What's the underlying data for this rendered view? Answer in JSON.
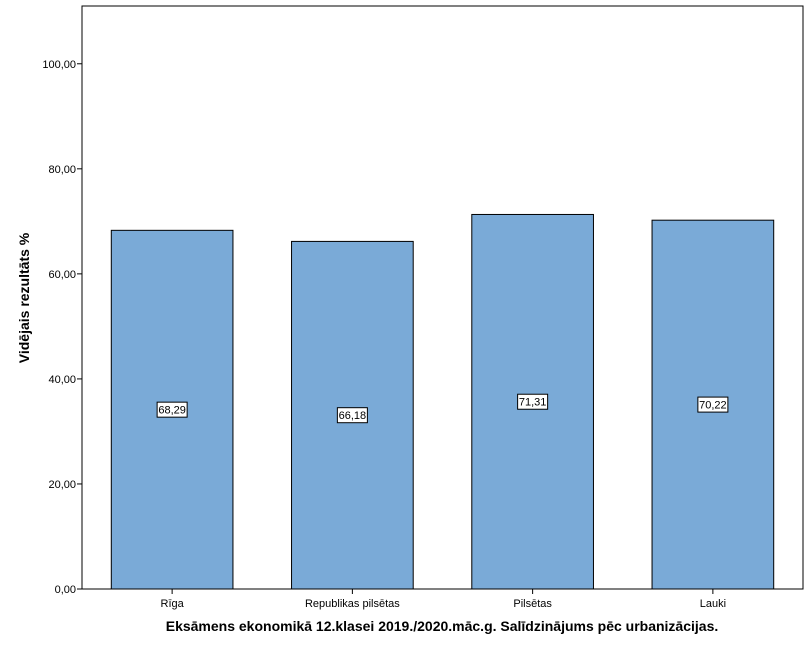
{
  "chart_data": {
    "type": "bar",
    "title": "",
    "categories": [
      "Rīga",
      "Republikas pilsētas",
      "Pilsētas",
      "Lauki"
    ],
    "values": [
      68.29,
      66.18,
      71.31,
      70.22
    ],
    "data_labels": [
      "68,29",
      "66,18",
      "71,31",
      "70,22"
    ],
    "xlabel": "Eksāmens ekonomikā 12.klasei 2019./2020.māc.g. Salīdzinājums pēc urbanizācijas.",
    "ylabel": "Vidējais rezultāts %",
    "ylim": [
      0,
      111
    ],
    "yticks": [
      0,
      20,
      40,
      60,
      80,
      100
    ],
    "ytick_labels": [
      "0,00",
      "20,00",
      "40,00",
      "60,00",
      "80,00",
      "100,00"
    ],
    "bar_color": "#7aaad7",
    "grid": false,
    "legend": "none"
  }
}
